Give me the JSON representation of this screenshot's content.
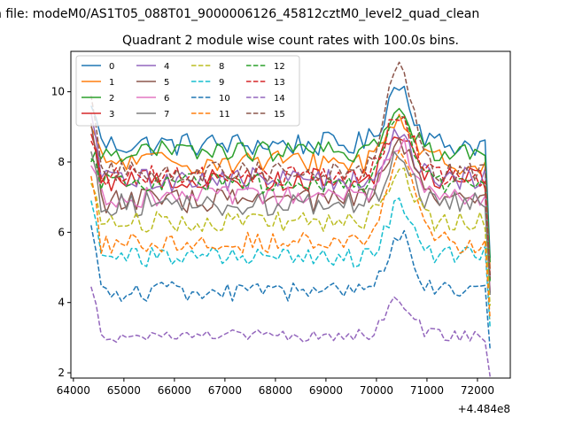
{
  "figure": {
    "suptitle": "n file: modeM0/AS1T05_088T01_9000006126_45812cztM0_level2_quad_clean",
    "title": "Quadrant 2 module wise count rates with 100.0s bins.",
    "offset_text": "+4.484e8"
  },
  "chart_data": {
    "type": "line",
    "title": "Quadrant 2 module wise count rates with 100.0s bins.",
    "xlabel": "",
    "ylabel": "",
    "x_offset": 448400000,
    "xlim": [
      63950,
      72650
    ],
    "ylim": [
      1.85,
      11.15
    ],
    "xticks": [
      64000,
      65000,
      66000,
      67000,
      68000,
      69000,
      70000,
      71000,
      72000
    ],
    "yticks": [
      2,
      4,
      6,
      8,
      10
    ],
    "grid": false,
    "legend": {
      "placement": "top-left",
      "ncol": 4
    },
    "x_start": 64350,
    "x_end": 72250,
    "x_step": 100,
    "peak_x": 70450,
    "series": [
      {
        "name": "0",
        "color": "#1f77b4",
        "dash": "solid",
        "base": 8.5,
        "peak": 1.7,
        "noise": 0.35,
        "start": 9.6
      },
      {
        "name": "1",
        "color": "#ff7f0e",
        "dash": "solid",
        "base": 8.0,
        "peak": 1.3,
        "noise": 0.35,
        "start": 9.0
      },
      {
        "name": "2",
        "color": "#2ca02c",
        "dash": "solid",
        "base": 8.3,
        "peak": 1.0,
        "noise": 0.3,
        "start": 8.0
      },
      {
        "name": "3",
        "color": "#d62728",
        "dash": "solid",
        "base": 7.5,
        "peak": 1.4,
        "noise": 0.35,
        "start": 8.8
      },
      {
        "name": "4",
        "color": "#9467bd",
        "dash": "solid",
        "base": 7.5,
        "peak": 1.2,
        "noise": 0.35,
        "start": 9.4
      },
      {
        "name": "5",
        "color": "#8c564b",
        "dash": "solid",
        "base": 6.9,
        "peak": 1.6,
        "noise": 0.35,
        "start": 9.1
      },
      {
        "name": "6",
        "color": "#e377c2",
        "dash": "solid",
        "base": 7.0,
        "peak": 1.6,
        "noise": 0.3,
        "start": 7.9
      },
      {
        "name": "7",
        "color": "#7f7f7f",
        "dash": "solid",
        "base": 6.8,
        "peak": 1.4,
        "noise": 0.35,
        "start": 8.3
      },
      {
        "name": "8",
        "color": "#bcbd22",
        "dash": "dashed",
        "base": 6.3,
        "peak": 1.4,
        "noise": 0.3,
        "start": 7.4
      },
      {
        "name": "9",
        "color": "#17becf",
        "dash": "dashed",
        "base": 5.3,
        "peak": 1.4,
        "noise": 0.3,
        "start": 6.9
      },
      {
        "name": "10",
        "color": "#1f77b4",
        "dash": "dashed",
        "base": 4.3,
        "peak": 1.6,
        "noise": 0.3,
        "start": 6.2
      },
      {
        "name": "11",
        "color": "#ff7f0e",
        "dash": "dashed",
        "base": 5.7,
        "peak": 2.6,
        "noise": 0.3,
        "start": 7.6
      },
      {
        "name": "12",
        "color": "#2ca02c",
        "dash": "dashed",
        "base": 7.4,
        "peak": 1.7,
        "noise": 0.3,
        "start": 8.1
      },
      {
        "name": "13",
        "color": "#d62728",
        "dash": "dashed",
        "base": 7.6,
        "peak": 1.8,
        "noise": 0.3,
        "start": 8.6
      },
      {
        "name": "14",
        "color": "#9467bd",
        "dash": "dashed",
        "base": 3.05,
        "peak": 1.0,
        "noise": 0.18,
        "start": 4.45
      },
      {
        "name": "15",
        "color": "#8c564b",
        "dash": "dashed",
        "base": 7.7,
        "peak": 3.0,
        "noise": 0.3,
        "start": 9.9
      }
    ]
  }
}
